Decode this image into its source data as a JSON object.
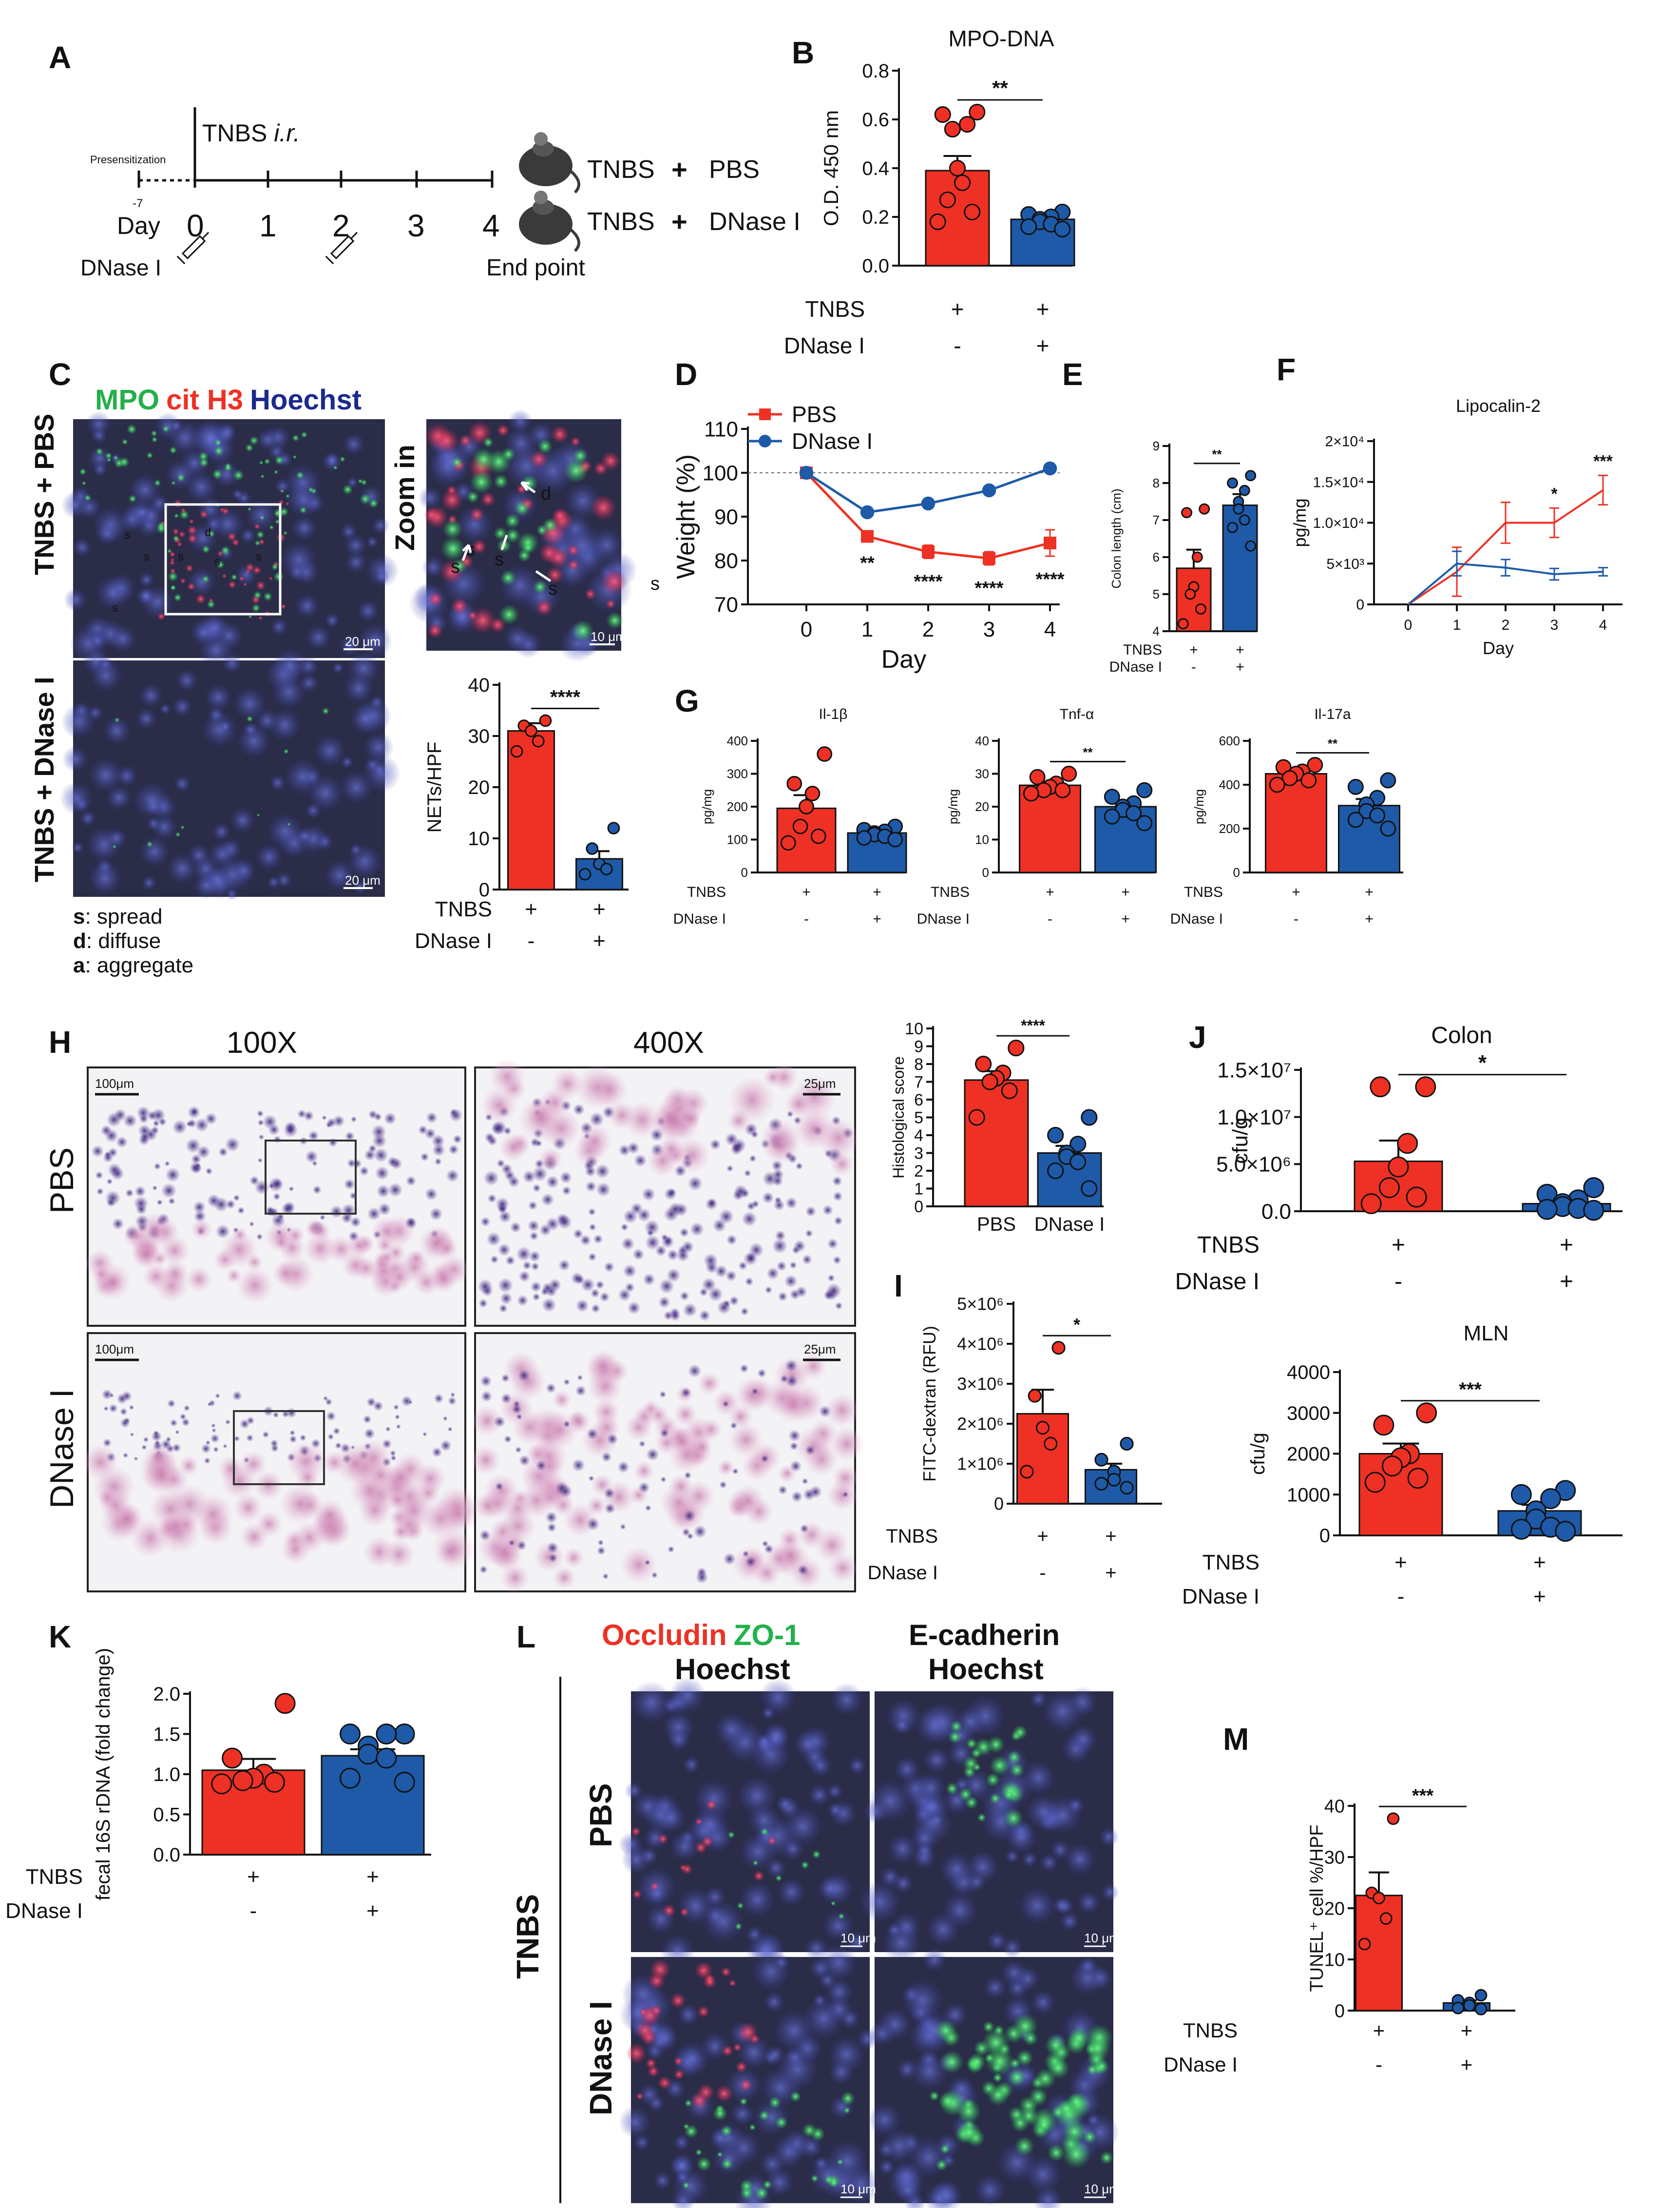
{
  "colors": {
    "red": "#EE3124",
    "blue": "#1E5AA8",
    "green": "#23B04A",
    "navy": "#1B2A8C",
    "micro_bg": "#2a2c48",
    "he_pink": "#d99cc2",
    "he_purple": "#4b3a8c"
  },
  "panel_letters": {
    "a": "A",
    "b": "B",
    "c": "C",
    "d": "D",
    "e": "E",
    "f": "F",
    "g": "G",
    "h": "H",
    "i": "I",
    "j": "J",
    "k": "K",
    "l": "L",
    "m": "M"
  },
  "common": {
    "tnbs": "TNBS",
    "dnase": "DNase I",
    "plus": "+",
    "minus": "-"
  },
  "panel_a": {
    "presensitization": "Presensitization",
    "day_minus7": "-7",
    "day_label": "Day",
    "tnbs_ir_1": "TNBS ",
    "tnbs_ir_2": "i.r.",
    "days": [
      "0",
      "1",
      "2",
      "3",
      "4"
    ],
    "dnase_label": "DNase I",
    "end_point": "End point",
    "group1": {
      "tnbs": "TNBS",
      "plus": "+",
      "treat": "PBS"
    },
    "group2": {
      "tnbs": "TNBS",
      "plus": "+",
      "treat": "DNase I"
    }
  },
  "panel_c": {
    "stain_mpo": "MPO",
    "stain_cith3": "cit H3",
    "stain_hoechst": "Hoechst",
    "row_pbs": "TNBS + PBS",
    "row_dnase": "TNBS + DNase I",
    "zoom_label": "Zoom in",
    "scale_20": "20 μm",
    "scale_10": "10 μm",
    "marker_s": "s",
    "marker_d": "d",
    "legend_s_key": "s",
    "legend_s": ": spread",
    "legend_d_key": "d",
    "legend_d": ": diffuse",
    "legend_a_key": "a",
    "legend_a": ": aggregate"
  },
  "panel_h": {
    "col_100x": "100X",
    "col_400x": "400X",
    "row_pbs": "PBS",
    "row_dnase": "DNase I",
    "scale_100": "100μm",
    "scale_25": "25μm"
  },
  "panel_l": {
    "occludin": "Occludin",
    "zo1": "ZO-1",
    "ecadherin": "E-cadherin",
    "hoechst1": "Hoechst",
    "hoechst2": "Hoechst",
    "side_label": "TNBS",
    "row_pbs": "PBS",
    "row_dnase": "DNase I",
    "scale": "10 μm"
  },
  "chart_data": [
    {
      "id": "B",
      "type": "bar",
      "title": "MPO-DNA",
      "ylabel": "O.D. 450 nm",
      "ylim": [
        0,
        0.8
      ],
      "yticks": [
        "0.0",
        "0.2",
        "0.4",
        "0.6",
        "0.8"
      ],
      "categories": [
        "TNBS + PBS",
        "TNBS + DNase I"
      ],
      "values": [
        0.39,
        0.19
      ],
      "errors": [
        0.06,
        0.015
      ],
      "points": [
        [
          0.63,
          0.62,
          0.58,
          0.56,
          0.4,
          0.34,
          0.27,
          0.22,
          0.18
        ],
        [
          0.22,
          0.21,
          0.2,
          0.19,
          0.18,
          0.17,
          0.16,
          0.15
        ]
      ],
      "significance": "**",
      "row_labels": [
        "TNBS",
        "DNase I"
      ],
      "row_values": [
        [
          "+",
          "+"
        ],
        [
          "-",
          "+"
        ]
      ]
    },
    {
      "id": "C",
      "type": "bar",
      "ylabel": "NETs/HPF",
      "ylim": [
        0,
        40
      ],
      "yticks": [
        "0",
        "10",
        "20",
        "30",
        "40"
      ],
      "categories": [
        "TNBS + PBS",
        "TNBS + DNase I"
      ],
      "values": [
        31,
        6
      ],
      "errors": [
        1.5,
        1.5
      ],
      "points": [
        [
          33,
          32,
          31,
          29,
          27
        ],
        [
          12,
          8,
          5,
          4,
          3
        ]
      ],
      "significance": "****",
      "row_labels": [
        "TNBS",
        "DNase I"
      ],
      "row_values": [
        [
          "+",
          "+"
        ],
        [
          "-",
          "+"
        ]
      ]
    },
    {
      "id": "D",
      "type": "line",
      "xlabel": "Day",
      "ylabel": "Weight (%)",
      "ylim": [
        70,
        110
      ],
      "yticks": [
        "70",
        "80",
        "90",
        "100",
        "110"
      ],
      "x": [
        "0",
        "1",
        "2",
        "3",
        "4"
      ],
      "series": [
        {
          "name": "PBS",
          "values": [
            100,
            85.5,
            82,
            80.5,
            84
          ],
          "errors": [
            0,
            0.8,
            1.5,
            1.5,
            3
          ]
        },
        {
          "name": "DNase I",
          "values": [
            100,
            91,
            93,
            96,
            101
          ],
          "errors": [
            0,
            0.5,
            0.5,
            0.5,
            0.5
          ]
        }
      ],
      "significance": [
        "",
        "**",
        "****",
        "****",
        "****"
      ]
    },
    {
      "id": "E",
      "type": "bar",
      "ylabel": "Colon length (cm)",
      "ylim": [
        4,
        9
      ],
      "yticks": [
        "4",
        "5",
        "6",
        "7",
        "8",
        "9"
      ],
      "categories": [
        "TNBS + PBS",
        "TNBS + DNase I"
      ],
      "values": [
        5.7,
        7.4
      ],
      "errors": [
        0.5,
        0.3
      ],
      "points": [
        [
          7.3,
          7.2,
          6.0,
          5.2,
          5.0,
          4.6,
          4.2
        ],
        [
          8.2,
          8.0,
          7.8,
          7.5,
          7.3,
          7.0,
          6.8,
          6.3
        ]
      ],
      "significance": "**",
      "row_labels": [
        "TNBS",
        "DNase I"
      ],
      "row_values": [
        [
          "+",
          "+"
        ],
        [
          "-",
          "+"
        ]
      ]
    },
    {
      "id": "F",
      "type": "line",
      "title": "Lipocalin-2",
      "xlabel": "Day",
      "ylabel": "pg/mg",
      "ylim": [
        0,
        20000
      ],
      "yticks": [
        "0",
        "5×10³",
        "1.0×10⁴",
        "1.5×10⁴",
        "2×10⁴"
      ],
      "x": [
        "0",
        "1",
        "2",
        "3",
        "4"
      ],
      "series": [
        {
          "name": "PBS",
          "values": [
            0,
            4000,
            10000,
            10000,
            14000
          ],
          "errors": [
            0,
            3000,
            2500,
            1800,
            1800
          ]
        },
        {
          "name": "DNase I",
          "values": [
            0,
            5000,
            4500,
            3700,
            4000
          ],
          "errors": [
            0,
            1500,
            1000,
            700,
            500
          ]
        }
      ],
      "significance": [
        "",
        "",
        "",
        "*",
        "***"
      ]
    },
    {
      "id": "G1",
      "type": "bar",
      "title": "Il-1β",
      "ylabel": "pg/mg",
      "ylim": [
        0,
        400
      ],
      "yticks": [
        "0",
        "100",
        "200",
        "300",
        "400"
      ],
      "categories": [
        "TNBS + PBS",
        "TNBS + DNase I"
      ],
      "values": [
        195,
        120
      ],
      "errors": [
        40,
        8
      ],
      "points": [
        [
          360,
          270,
          240,
          200,
          140,
          110,
          90
        ],
        [
          140,
          130,
          125,
          120,
          115,
          110,
          105,
          100
        ]
      ],
      "significance": "",
      "row_labels": [
        "TNBS",
        "DNase I"
      ],
      "row_values": [
        [
          "+",
          "+"
        ],
        [
          "-",
          "+"
        ]
      ]
    },
    {
      "id": "G2",
      "type": "bar",
      "title": "Tnf-α",
      "ylabel": "pg/mg",
      "ylim": [
        0,
        40
      ],
      "yticks": [
        "0",
        "10",
        "20",
        "30",
        "40"
      ],
      "categories": [
        "TNBS + PBS",
        "TNBS + DNase I"
      ],
      "values": [
        26.5,
        20
      ],
      "errors": [
        1,
        1.5
      ],
      "points": [
        [
          30,
          29,
          27,
          26,
          25,
          25,
          24
        ],
        [
          25,
          23,
          21,
          20,
          19,
          18,
          17,
          15
        ]
      ],
      "significance": "**",
      "row_labels": [
        "TNBS",
        "DNase I"
      ],
      "row_values": [
        [
          "+",
          "+"
        ],
        [
          "-",
          "+"
        ]
      ]
    },
    {
      "id": "G3",
      "type": "bar",
      "title": "Il-17a",
      "ylabel": "pg/mg",
      "ylim": [
        0,
        600
      ],
      "yticks": [
        "0",
        "200",
        "400",
        "600"
      ],
      "categories": [
        "TNBS + PBS",
        "TNBS + DNase I"
      ],
      "values": [
        450,
        305
      ],
      "errors": [
        20,
        30
      ],
      "points": [
        [
          490,
          480,
          460,
          450,
          430,
          420,
          400
        ],
        [
          420,
          390,
          340,
          310,
          280,
          260,
          240,
          200
        ]
      ],
      "significance": "**",
      "row_labels": [
        "TNBS",
        "DNase I"
      ],
      "row_values": [
        [
          "+",
          "+"
        ],
        [
          "-",
          "+"
        ]
      ]
    },
    {
      "id": "H",
      "type": "bar",
      "ylabel": "Histological score",
      "ylim": [
        0,
        10
      ],
      "yticks": [
        "0",
        "1",
        "2",
        "3",
        "4",
        "5",
        "6",
        "7",
        "8",
        "9",
        "10"
      ],
      "categories": [
        "PBS",
        "DNase I"
      ],
      "values": [
        7.1,
        3.0
      ],
      "errors": [
        0.5,
        0.4
      ],
      "points": [
        [
          8.9,
          8.0,
          7.5,
          7.2,
          7.0,
          6.5,
          5.0
        ],
        [
          5.0,
          4.0,
          3.5,
          3.0,
          2.8,
          2.5,
          2.0,
          1.0
        ]
      ],
      "significance": "****"
    },
    {
      "id": "I",
      "type": "bar",
      "ylabel": "FITC-dextran (RFU)",
      "ylim": [
        0,
        5000000
      ],
      "yticks": [
        "0",
        "1×10⁶",
        "2×10⁶",
        "3×10⁶",
        "4×10⁶",
        "5×10⁶"
      ],
      "categories": [
        "TNBS + PBS",
        "TNBS + DNase I"
      ],
      "values": [
        2250000,
        850000
      ],
      "errors": [
        600000,
        150000
      ],
      "points": [
        [
          3900000,
          2700000,
          1900000,
          1500000,
          800000
        ],
        [
          1500000,
          1100000,
          800000,
          600000,
          500000,
          400000
        ]
      ],
      "significance": "*",
      "row_labels": [
        "TNBS",
        "DNase I"
      ],
      "row_values": [
        [
          "+",
          "+"
        ],
        [
          "-",
          "+"
        ]
      ]
    },
    {
      "id": "J1",
      "type": "bar",
      "title": "Colon",
      "ylabel": "cfu/g",
      "ylim": [
        0,
        15000000
      ],
      "yticks": [
        "0.0",
        "5.0×10⁶",
        "1.0×10⁷",
        "1.5×10⁷"
      ],
      "categories": [
        "TNBS + PBS",
        "TNBS + DNase I"
      ],
      "values": [
        5300000,
        800000
      ],
      "errors": [
        2200000,
        300000
      ],
      "points": [
        [
          13200000,
          13200000,
          7200000,
          4700000,
          2500000,
          1500000,
          800000
        ],
        [
          2500000,
          1800000,
          1200000,
          800000,
          500000,
          300000,
          200000,
          100000
        ]
      ],
      "significance": "*",
      "row_labels": [
        "TNBS",
        "DNase I"
      ],
      "row_values": [
        [
          "+",
          "+"
        ],
        [
          "-",
          "+"
        ]
      ]
    },
    {
      "id": "J2",
      "type": "bar",
      "title": "MLN",
      "ylabel": "cfu/g",
      "ylim": [
        0,
        4000
      ],
      "yticks": [
        "0",
        "1000",
        "2000",
        "3000",
        "4000"
      ],
      "categories": [
        "TNBS + PBS",
        "TNBS + DNase I"
      ],
      "values": [
        2000,
        600
      ],
      "errors": [
        250,
        150
      ],
      "points": [
        [
          3000,
          2700,
          2000,
          1900,
          1700,
          1400,
          1300
        ],
        [
          1100,
          1000,
          900,
          600,
          400,
          200,
          150,
          100
        ]
      ],
      "significance": "***",
      "row_labels": [
        "TNBS",
        "DNase I"
      ],
      "row_values": [
        [
          "+",
          "+"
        ],
        [
          "-",
          "+"
        ]
      ]
    },
    {
      "id": "K",
      "type": "bar",
      "ylabel": "fecal 16S rDNA (fold change)",
      "ylim": [
        0,
        2.0
      ],
      "yticks": [
        "0.0",
        "0.5",
        "1.0",
        "1.5",
        "2.0"
      ],
      "categories": [
        "TNBS + PBS",
        "TNBS + DNase I"
      ],
      "values": [
        1.05,
        1.23
      ],
      "errors": [
        0.14,
        0.08
      ],
      "points": [
        [
          1.88,
          1.2,
          1.0,
          0.95,
          0.92,
          0.9,
          0.88
        ],
        [
          1.5,
          1.5,
          1.5,
          1.35,
          1.25,
          1.2,
          0.95,
          0.9
        ]
      ],
      "significance": "",
      "row_labels": [
        "TNBS",
        "DNase I"
      ],
      "row_values": [
        [
          "+",
          "+"
        ],
        [
          "-",
          "+"
        ]
      ]
    },
    {
      "id": "M",
      "type": "bar",
      "ylabel": "TUNEL⁺ cell %/HPF",
      "ylim": [
        0,
        40
      ],
      "yticks": [
        "0",
        "10",
        "20",
        "30",
        "40"
      ],
      "categories": [
        "TNBS + PBS",
        "TNBS + DNase I"
      ],
      "values": [
        22.5,
        1.5
      ],
      "errors": [
        4.5,
        0.5
      ],
      "points": [
        [
          37.5,
          23,
          22,
          18,
          13
        ],
        [
          3,
          2,
          1.5,
          1,
          0.5,
          0.3
        ]
      ],
      "significance": "***",
      "row_labels": [
        "TNBS",
        "DNase I"
      ],
      "row_values": [
        [
          "+",
          "+"
        ],
        [
          "-",
          "+"
        ]
      ]
    }
  ]
}
